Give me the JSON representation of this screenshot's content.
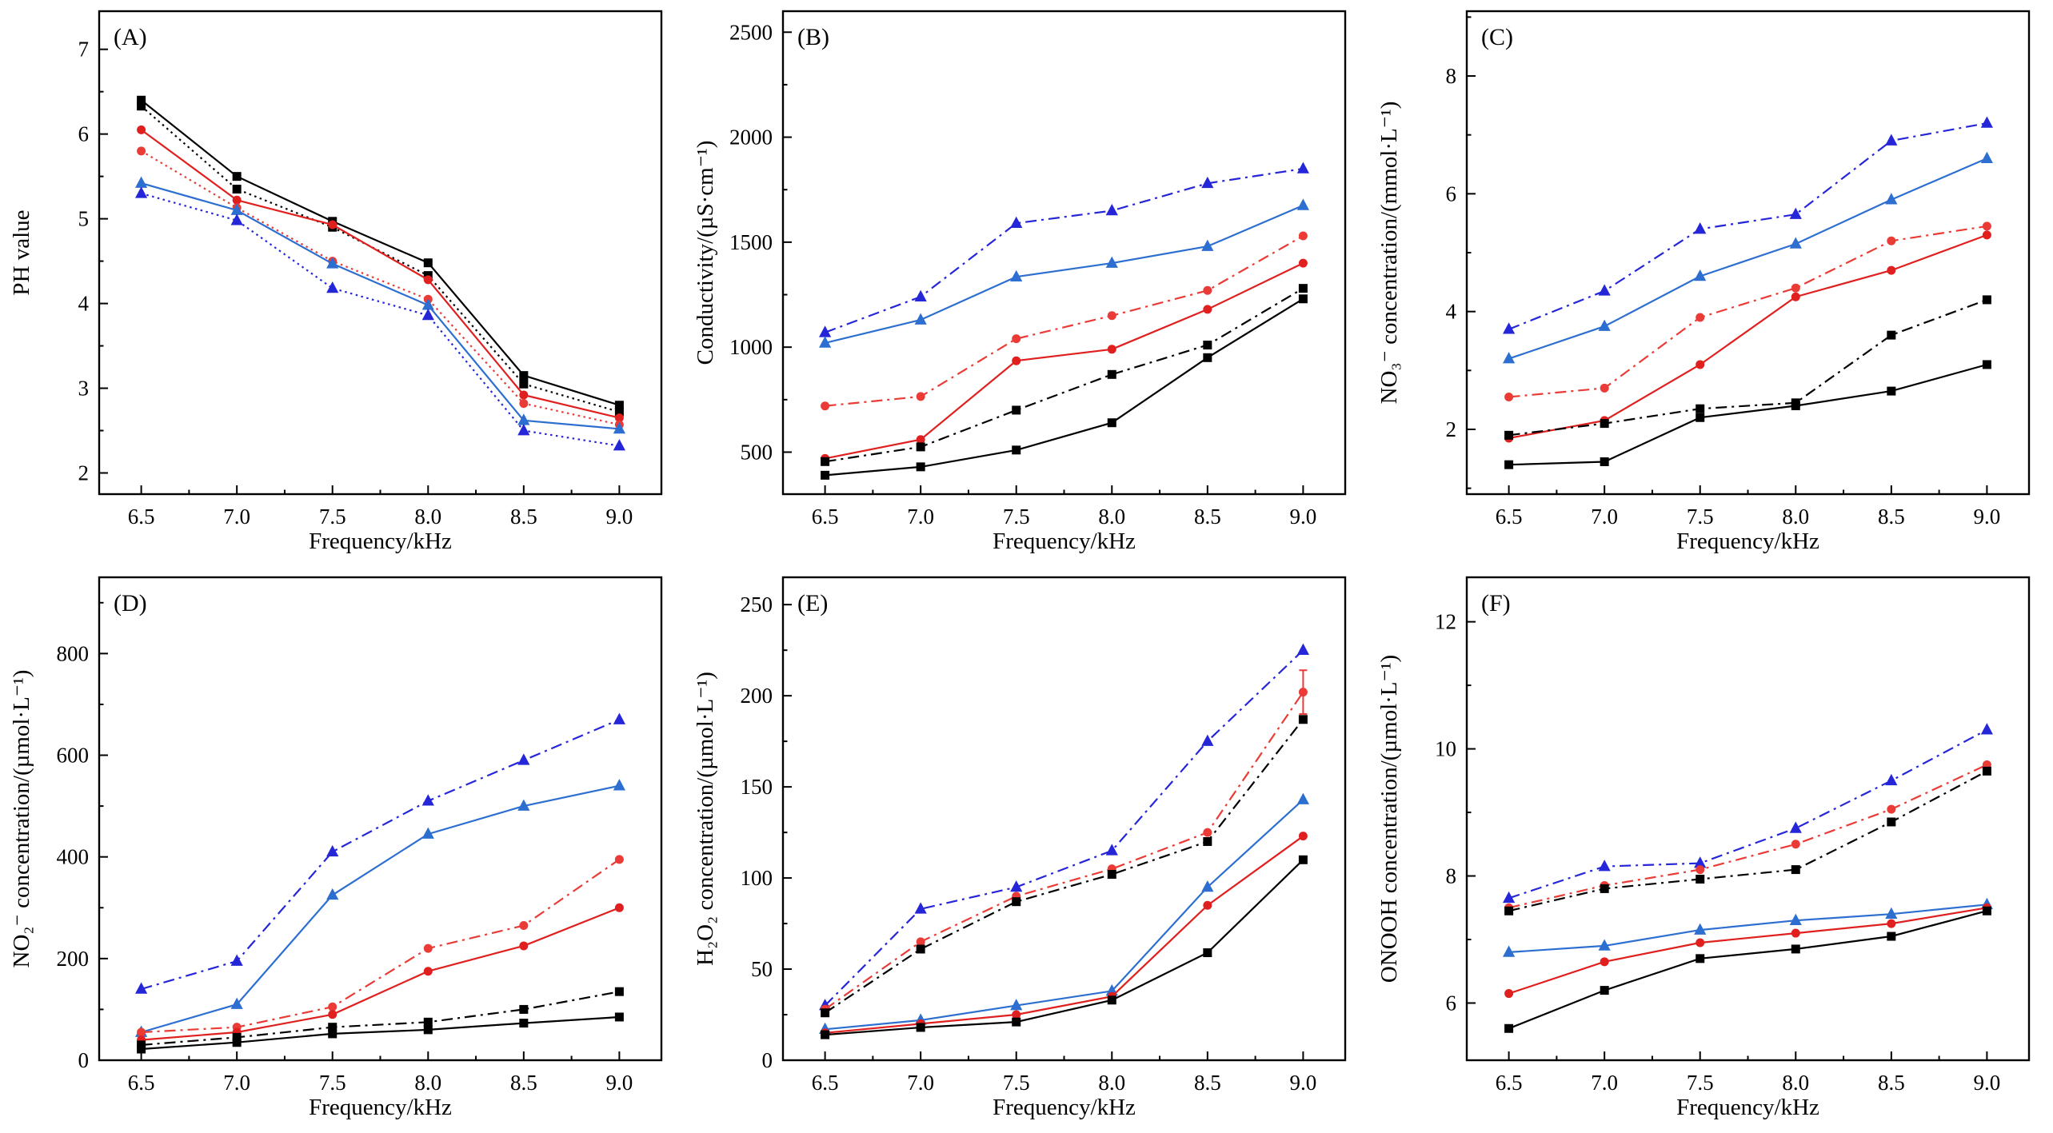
{
  "figure": {
    "background": "#ffffff",
    "xlabel": "Frequency/kHz",
    "panel_labels": [
      "(A)",
      "(B)",
      "(C)",
      "(D)",
      "(E)",
      "(F)"
    ]
  },
  "chart_data": [
    {
      "type": "line",
      "panel_label": "(A)",
      "xlabel": "Frequency/kHz",
      "ylabel": "PH value",
      "x": [
        6.5,
        7.0,
        7.5,
        8.0,
        8.5,
        9.0
      ],
      "xticks": [
        6.5,
        7.0,
        7.5,
        8.0,
        8.5,
        9.0
      ],
      "xlim": [
        6.28,
        9.22
      ],
      "ylim": [
        1.75,
        7.45
      ],
      "yticks": [
        2,
        3,
        4,
        5,
        6,
        7
      ],
      "grid": false,
      "legend": "none",
      "series": [
        {
          "name": "black-square-solid",
          "color": "#000000",
          "marker": "square",
          "line": "solid",
          "values": [
            6.4,
            5.5,
            4.97,
            4.48,
            3.15,
            2.8
          ]
        },
        {
          "name": "black-square-dotted",
          "color": "#000000",
          "marker": "square",
          "line": "dot",
          "values": [
            6.33,
            5.35,
            4.9,
            4.33,
            3.05,
            2.72
          ]
        },
        {
          "name": "red-circle-solid",
          "color": "#e0201f",
          "marker": "circle",
          "line": "solid",
          "values": [
            6.05,
            5.22,
            4.93,
            4.28,
            2.92,
            2.65
          ]
        },
        {
          "name": "red-circle-dotted",
          "color": "#ea3b36",
          "marker": "circle",
          "line": "dot",
          "values": [
            5.8,
            5.13,
            4.5,
            4.05,
            2.82,
            2.57
          ]
        },
        {
          "name": "blue-triangle-solid",
          "color": "#2d6fd0",
          "marker": "triangle",
          "line": "solid",
          "values": [
            5.42,
            5.1,
            4.47,
            3.98,
            2.62,
            2.52
          ]
        },
        {
          "name": "blue-triangle-dotted",
          "color": "#2626d9",
          "marker": "triangle",
          "line": "dot",
          "values": [
            5.3,
            4.98,
            4.18,
            3.86,
            2.5,
            2.32
          ]
        }
      ]
    },
    {
      "type": "line",
      "panel_label": "(B)",
      "xlabel": "Frequency/kHz",
      "ylabel": "Conductivity/(µS·cm⁻¹)",
      "x": [
        6.5,
        7.0,
        7.5,
        8.0,
        8.5,
        9.0
      ],
      "xticks": [
        6.5,
        7.0,
        7.5,
        8.0,
        8.5,
        9.0
      ],
      "xlim": [
        6.28,
        9.22
      ],
      "ylim": [
        300,
        2600
      ],
      "yticks": [
        500,
        1000,
        1500,
        2000,
        2500
      ],
      "grid": false,
      "legend": "none",
      "series": [
        {
          "name": "blue-triangle-dashdot",
          "color": "#2626d9",
          "marker": "triangle",
          "line": "dashdot",
          "values": [
            1070,
            1240,
            1590,
            1650,
            1780,
            1850
          ]
        },
        {
          "name": "blue-triangle-solid",
          "color": "#2d6fd0",
          "marker": "triangle",
          "line": "solid",
          "values": [
            1020,
            1130,
            1335,
            1400,
            1480,
            1675
          ]
        },
        {
          "name": "red-circle-dashdot",
          "color": "#ea3b36",
          "marker": "circle",
          "line": "dashdot",
          "values": [
            720,
            765,
            1040,
            1150,
            1270,
            1530
          ]
        },
        {
          "name": "red-circle-solid",
          "color": "#e0201f",
          "marker": "circle",
          "line": "solid",
          "values": [
            470,
            560,
            935,
            990,
            1180,
            1400
          ]
        },
        {
          "name": "black-square-dashdot",
          "color": "#000000",
          "marker": "square",
          "line": "dashdot",
          "values": [
            455,
            525,
            700,
            870,
            1010,
            1280
          ]
        },
        {
          "name": "black-square-solid",
          "color": "#000000",
          "marker": "square",
          "line": "solid",
          "values": [
            390,
            430,
            510,
            640,
            950,
            1230
          ]
        }
      ]
    },
    {
      "type": "line",
      "panel_label": "(C)",
      "xlabel": "Frequency/kHz",
      "ylabel": "NO₃⁻ concentration/(mmol·L⁻¹)",
      "x": [
        6.5,
        7.0,
        7.5,
        8.0,
        8.5,
        9.0
      ],
      "xticks": [
        6.5,
        7.0,
        7.5,
        8.0,
        8.5,
        9.0
      ],
      "xlim": [
        6.28,
        9.22
      ],
      "ylim": [
        0.9,
        9.1
      ],
      "yticks": [
        2,
        4,
        6,
        8
      ],
      "grid": false,
      "legend": "none",
      "series": [
        {
          "name": "blue-triangle-dashdot",
          "color": "#2626d9",
          "marker": "triangle",
          "line": "dashdot",
          "values": [
            3.7,
            4.35,
            5.4,
            5.65,
            6.9,
            7.2
          ]
        },
        {
          "name": "blue-triangle-solid",
          "color": "#2d6fd0",
          "marker": "triangle",
          "line": "solid",
          "values": [
            3.2,
            3.75,
            4.6,
            5.15,
            5.9,
            6.6
          ]
        },
        {
          "name": "red-circle-dashdot",
          "color": "#ea3b36",
          "marker": "circle",
          "line": "dashdot",
          "values": [
            2.55,
            2.7,
            3.9,
            4.4,
            5.2,
            5.45
          ]
        },
        {
          "name": "red-circle-solid",
          "color": "#e0201f",
          "marker": "circle",
          "line": "solid",
          "values": [
            1.85,
            2.15,
            3.1,
            4.25,
            4.7,
            5.3
          ]
        },
        {
          "name": "black-square-dashdot",
          "color": "#000000",
          "marker": "square",
          "line": "dashdot",
          "values": [
            1.9,
            2.1,
            2.35,
            2.45,
            3.6,
            4.2
          ]
        },
        {
          "name": "black-square-solid",
          "color": "#000000",
          "marker": "square",
          "line": "solid",
          "values": [
            1.4,
            1.45,
            2.2,
            2.4,
            2.65,
            3.1
          ]
        }
      ]
    },
    {
      "type": "line",
      "panel_label": "(D)",
      "xlabel": "Frequency/kHz",
      "ylabel": "NO₂⁻ concentration/(µmol·L⁻¹)",
      "x": [
        6.5,
        7.0,
        7.5,
        8.0,
        8.5,
        9.0
      ],
      "xticks": [
        6.5,
        7.0,
        7.5,
        8.0,
        8.5,
        9.0
      ],
      "xlim": [
        6.28,
        9.22
      ],
      "ylim": [
        0,
        950
      ],
      "yticks": [
        0,
        200,
        400,
        600,
        800
      ],
      "grid": false,
      "legend": "none",
      "series": [
        {
          "name": "blue-triangle-dashdot",
          "color": "#2626d9",
          "marker": "triangle",
          "line": "dashdot",
          "values": [
            140,
            195,
            410,
            510,
            590,
            670
          ]
        },
        {
          "name": "blue-triangle-solid",
          "color": "#2d6fd0",
          "marker": "triangle",
          "line": "solid",
          "values": [
            55,
            110,
            325,
            445,
            500,
            540
          ]
        },
        {
          "name": "red-circle-dashdot",
          "color": "#ea3b36",
          "marker": "circle",
          "line": "dashdot",
          "values": [
            55,
            65,
            105,
            220,
            265,
            395
          ]
        },
        {
          "name": "red-circle-solid",
          "color": "#e0201f",
          "marker": "circle",
          "line": "solid",
          "values": [
            40,
            55,
            90,
            175,
            225,
            300
          ]
        },
        {
          "name": "black-square-dashdot",
          "color": "#000000",
          "marker": "square",
          "line": "dashdot",
          "values": [
            30,
            45,
            65,
            75,
            100,
            135
          ]
        },
        {
          "name": "black-square-solid",
          "color": "#000000",
          "marker": "square",
          "line": "solid",
          "values": [
            22,
            35,
            52,
            60,
            73,
            85
          ]
        }
      ]
    },
    {
      "type": "line",
      "panel_label": "(E)",
      "xlabel": "Frequency/kHz",
      "ylabel": "H₂O₂ concentration/(µmol·L⁻¹)",
      "x": [
        6.5,
        7.0,
        7.5,
        8.0,
        8.5,
        9.0
      ],
      "xticks": [
        6.5,
        7.0,
        7.5,
        8.0,
        8.5,
        9.0
      ],
      "xlim": [
        6.28,
        9.22
      ],
      "ylim": [
        0,
        265
      ],
      "yticks": [
        0,
        50,
        100,
        150,
        200,
        250
      ],
      "grid": false,
      "legend": "none",
      "series": [
        {
          "name": "blue-triangle-dashdot",
          "color": "#2626d9",
          "marker": "triangle",
          "line": "dashdot",
          "values": [
            30,
            83,
            95,
            115,
            175,
            225
          ]
        },
        {
          "name": "red-circle-dashdot",
          "color": "#ea3b36",
          "marker": "circle",
          "line": "dashdot",
          "values": [
            28,
            65,
            90,
            105,
            125,
            202
          ],
          "yerr": [
            0,
            0,
            0,
            0,
            0,
            12
          ]
        },
        {
          "name": "black-square-dashdot",
          "color": "#000000",
          "marker": "square",
          "line": "dashdot",
          "values": [
            26,
            61,
            87,
            102,
            120,
            187
          ]
        },
        {
          "name": "blue-triangle-solid",
          "color": "#2d6fd0",
          "marker": "triangle",
          "line": "solid",
          "values": [
            17,
            22,
            30,
            38,
            95,
            143
          ]
        },
        {
          "name": "red-circle-solid",
          "color": "#e0201f",
          "marker": "circle",
          "line": "solid",
          "values": [
            15,
            20,
            25,
            35,
            85,
            123
          ]
        },
        {
          "name": "black-square-solid",
          "color": "#000000",
          "marker": "square",
          "line": "solid",
          "values": [
            14,
            18,
            21,
            33,
            59,
            110
          ]
        }
      ]
    },
    {
      "type": "line",
      "panel_label": "(F)",
      "xlabel": "Frequency/kHz",
      "ylabel": "ONOOH concentration/(µmol·L⁻¹)",
      "x": [
        6.5,
        7.0,
        7.5,
        8.0,
        8.5,
        9.0
      ],
      "xticks": [
        6.5,
        7.0,
        7.5,
        8.0,
        8.5,
        9.0
      ],
      "xlim": [
        6.28,
        9.22
      ],
      "ylim": [
        5.1,
        12.7
      ],
      "yticks": [
        6,
        8,
        10,
        12
      ],
      "grid": false,
      "legend": "none",
      "series": [
        {
          "name": "blue-triangle-dashdot",
          "color": "#2626d9",
          "marker": "triangle",
          "line": "dashdot",
          "values": [
            7.65,
            8.15,
            8.2,
            8.75,
            9.5,
            10.3
          ]
        },
        {
          "name": "red-circle-dashdot",
          "color": "#ea3b36",
          "marker": "circle",
          "line": "dashdot",
          "values": [
            7.5,
            7.85,
            8.1,
            8.5,
            9.05,
            9.75
          ]
        },
        {
          "name": "black-square-dashdot",
          "color": "#000000",
          "marker": "square",
          "line": "dashdot",
          "values": [
            7.45,
            7.8,
            7.95,
            8.1,
            8.85,
            9.65
          ]
        },
        {
          "name": "blue-triangle-solid",
          "color": "#2d6fd0",
          "marker": "triangle",
          "line": "solid",
          "values": [
            6.8,
            6.9,
            7.15,
            7.3,
            7.4,
            7.55
          ]
        },
        {
          "name": "red-circle-solid",
          "color": "#e0201f",
          "marker": "circle",
          "line": "solid",
          "values": [
            6.15,
            6.65,
            6.95,
            7.1,
            7.25,
            7.5
          ]
        },
        {
          "name": "black-square-solid",
          "color": "#000000",
          "marker": "square",
          "line": "solid",
          "values": [
            5.6,
            6.2,
            6.7,
            6.85,
            7.05,
            7.45
          ]
        }
      ]
    }
  ]
}
